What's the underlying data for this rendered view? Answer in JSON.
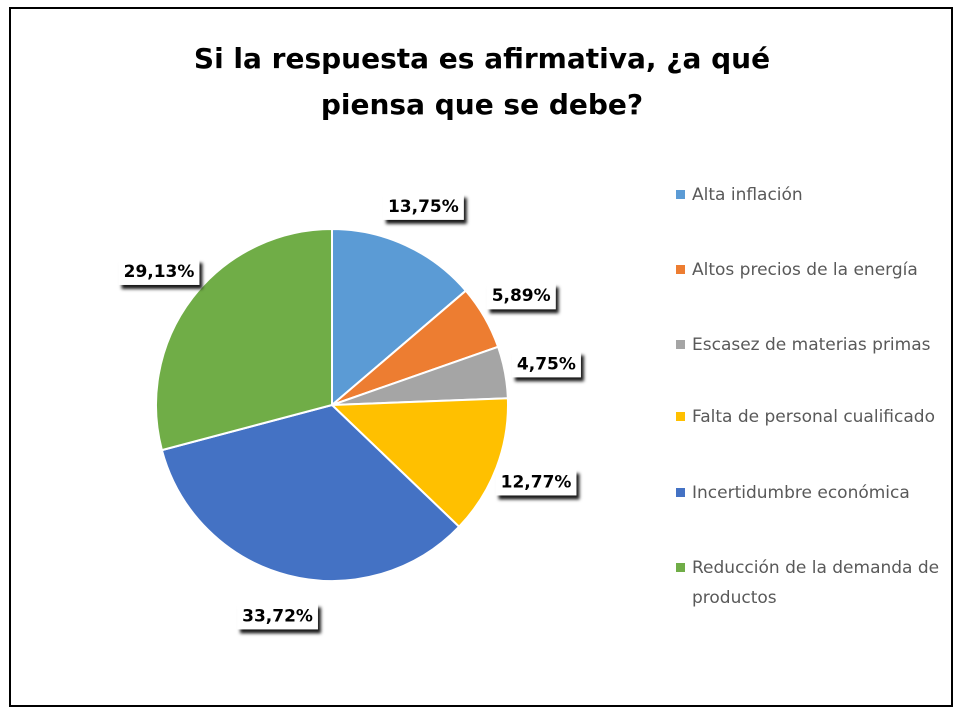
{
  "chart_data": {
    "type": "pie",
    "title": "Si la respuesta es afirmativa, ¿a qué piensa que se debe?",
    "categories": [
      "Alta inflación",
      "Altos precios de la energía",
      "Escasez de materias primas",
      "Falta de personal cualificado",
      "Incertidumbre económica",
      "Reducción de la demanda de productos"
    ],
    "values": [
      13.75,
      5.89,
      4.75,
      12.77,
      33.72,
      29.13
    ],
    "value_labels": [
      "13,75%",
      "5,89%",
      "4,75%",
      "12,77%",
      "33,72%",
      "29,13%"
    ],
    "colors": [
      "#5b9bd5",
      "#ed7d31",
      "#a5a5a5",
      "#ffc000",
      "#4472c4",
      "#70ad47"
    ],
    "legend": "right"
  }
}
